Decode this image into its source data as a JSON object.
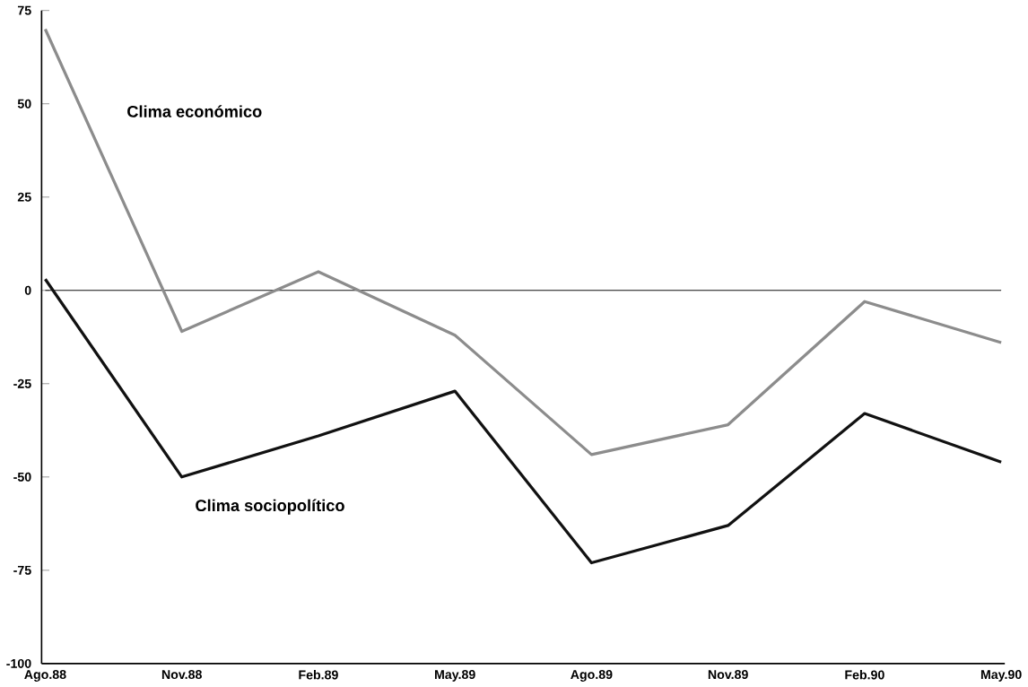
{
  "chart_data": {
    "type": "line",
    "categories": [
      "Ago.88",
      "Nov.88",
      "Feb.89",
      "May.89",
      "Ago.89",
      "Nov.89",
      "Feb.90",
      "May.90"
    ],
    "series": [
      {
        "name": "Clima económico",
        "color": "#8c8c8c",
        "values": [
          70,
          -11,
          5,
          -12,
          -44,
          -36,
          -3,
          -14
        ]
      },
      {
        "name": "Clima sociopolítico",
        "color": "#111111",
        "values": [
          3,
          -50,
          -39,
          -27,
          -73,
          -63,
          -33,
          -46
        ]
      }
    ],
    "ylim": [
      -100,
      75
    ],
    "yticks": [
      -100,
      -75,
      -50,
      -25,
      0,
      25,
      50,
      75
    ],
    "ref_lines": [
      {
        "axis": "y",
        "value": 0,
        "color": "#111111"
      }
    ],
    "grid": false,
    "legend": false,
    "marker": "none",
    "line_style": "solid"
  }
}
